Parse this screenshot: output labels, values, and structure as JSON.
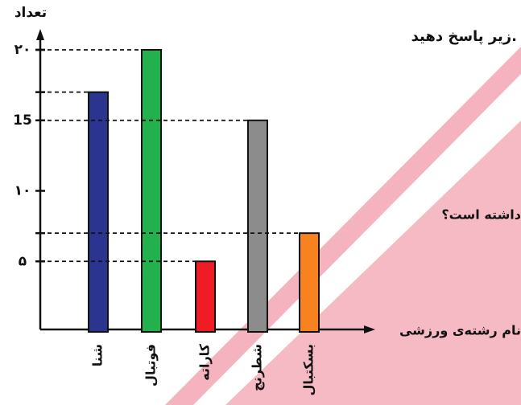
{
  "chart_data": {
    "type": "bar",
    "y_label": "تعداد",
    "x_label": "نام رشته‌ی ورزشی",
    "annotations": [
      "زیر پاسخ دهید.",
      "داشته است؟"
    ],
    "categories": [
      "شنا",
      "فوتبال",
      "کاراته",
      "شطرنج",
      "بسکتبال"
    ],
    "values": [
      17,
      20,
      5,
      15,
      7
    ],
    "colors": [
      "#2b3590",
      "#22b14c",
      "#ee1c25",
      "#8c8c8c",
      "#f7821e"
    ],
    "ylim": [
      0,
      20
    ],
    "yticks": [
      {
        "value": 5,
        "label": "۵"
      },
      {
        "value": 10,
        "label": "۱۰"
      },
      15,
      {
        "value": 20,
        "label": "۲۰"
      }
    ]
  }
}
